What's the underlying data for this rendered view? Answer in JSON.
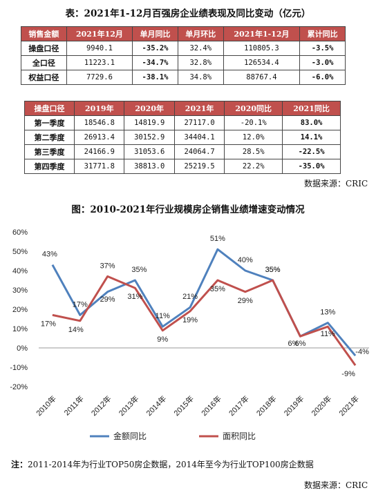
{
  "table1": {
    "title": "表：2021年1-12月百强房企业绩表现及同比变动（亿元）",
    "headers": [
      "销售金额",
      "2021年12月",
      "单月同比",
      "单月环比",
      "2021年1-12月",
      "累计同比"
    ],
    "rows": [
      [
        "操盘口径",
        "9940.1",
        "-35.2%",
        "32.4%",
        "110805.3",
        "-3.5%"
      ],
      [
        "全口径",
        "11223.1",
        "-34.7%",
        "32.8%",
        "126534.4",
        "-3.0%"
      ],
      [
        "权益口径",
        "7729.6",
        "-38.1%",
        "34.8%",
        "88767.4",
        "-6.0%"
      ]
    ]
  },
  "table2": {
    "headers": [
      "操盘口径",
      "2019年",
      "2020年",
      "2021年",
      "2020同比",
      "2021同比"
    ],
    "rows": [
      [
        "第一季度",
        "18546.8",
        "14819.9",
        "27117.0",
        "-20.1%",
        "83.0%"
      ],
      [
        "第二季度",
        "26913.4",
        "30152.9",
        "34404.1",
        "12.0%",
        "14.1%"
      ],
      [
        "第三季度",
        "24166.9",
        "31053.6",
        "24064.7",
        "28.5%",
        "-22.5%"
      ],
      [
        "第四季度",
        "31771.8",
        "38813.0",
        "25219.5",
        "22.2%",
        "-35.0%"
      ]
    ]
  },
  "source1": "数据来源：CRIC",
  "chart_data": {
    "type": "line",
    "title": "图：2010-2021年行业规模房企销售业绩增速变动情况",
    "categories": [
      "2010年",
      "2011年",
      "2012年",
      "2013年",
      "2014年",
      "2015年",
      "2016年",
      "2017年",
      "2018年",
      "2019年",
      "2020年",
      "2021年"
    ],
    "series": [
      {
        "name": "金额同比",
        "color": "#4f81bd",
        "values": [
          43,
          17,
          29,
          35,
          11,
          21,
          51,
          40,
          35,
          6,
          13,
          -4
        ],
        "labels": [
          "43%",
          "17%",
          "29%",
          "35%",
          "11%",
          "21%",
          "51%",
          "40%",
          "35%",
          "6%",
          "13%",
          "-4%"
        ]
      },
      {
        "name": "面积同比",
        "color": "#c0504d",
        "values": [
          17,
          14,
          37,
          31,
          9,
          19,
          35,
          29,
          35,
          6,
          11,
          -9
        ],
        "labels": [
          "17%",
          "14%",
          "37%",
          "31%",
          "9%",
          "19%",
          "35%",
          "29%",
          "35%",
          "6%",
          "11%",
          "-9%"
        ]
      }
    ],
    "yticks": [
      "60%",
      "50%",
      "40%",
      "30%",
      "20%",
      "10%",
      "0%",
      "-10%",
      "-20%"
    ],
    "ylim": [
      -20,
      60
    ],
    "grid": false,
    "legend": "bottom"
  },
  "note": {
    "label": "注：",
    "text": "2011-2014年为行业TOP50房企数据，2014年至今为行业TOP100房企数据"
  },
  "source2": "数据来源：CRIC"
}
